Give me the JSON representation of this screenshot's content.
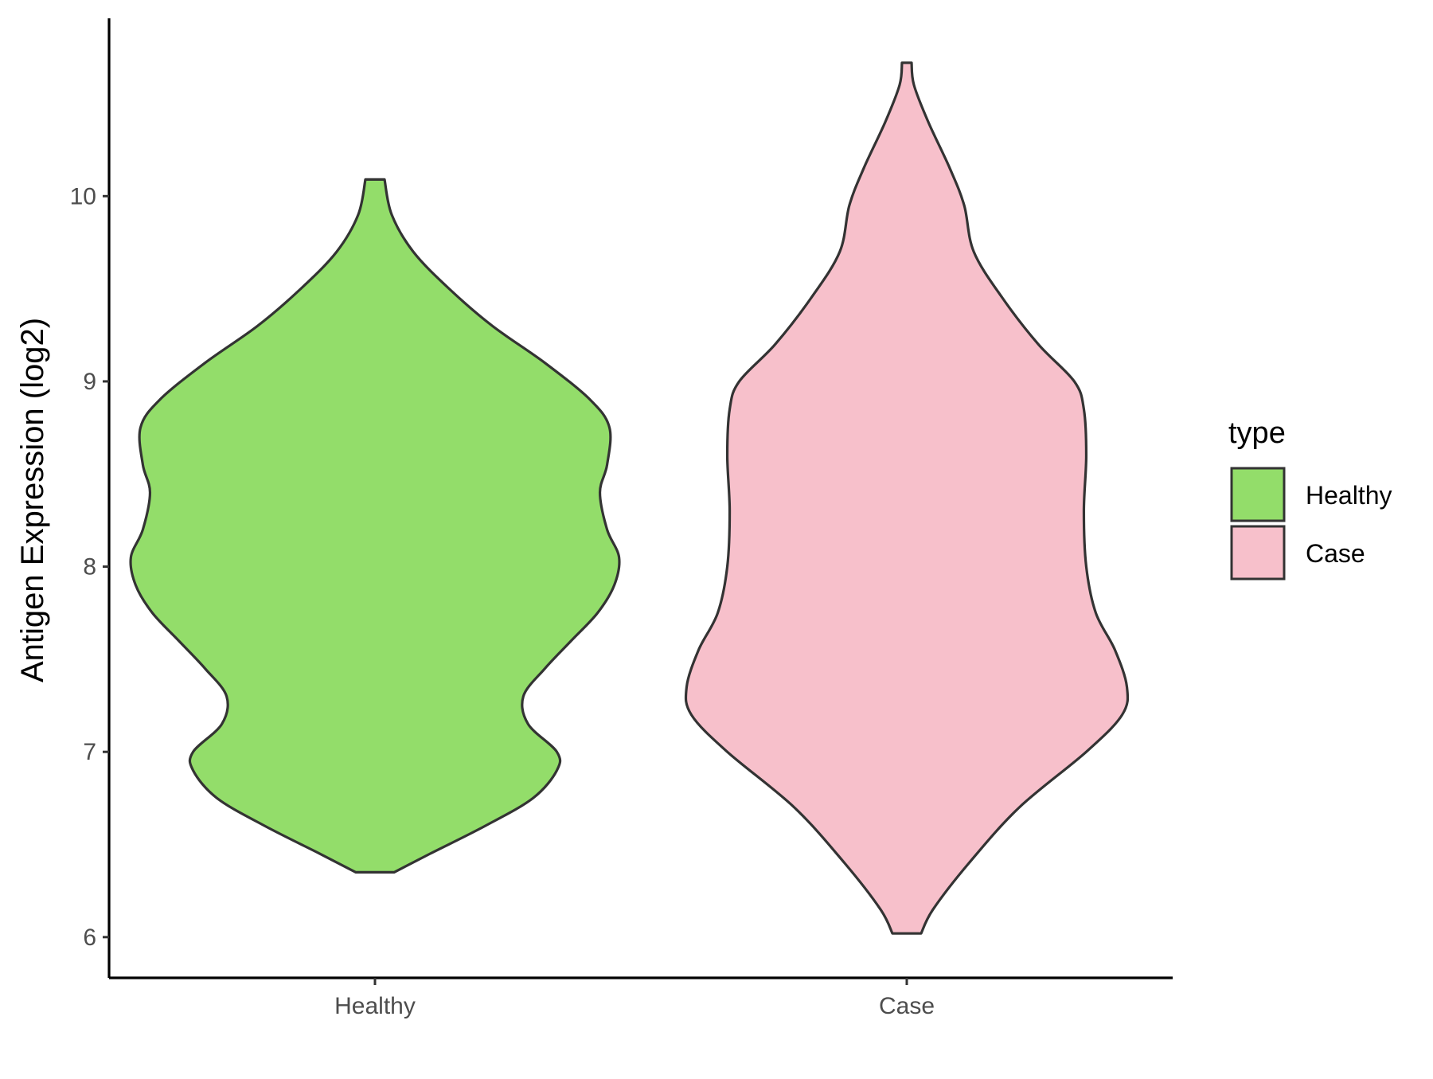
{
  "chart_data": {
    "type": "violin",
    "ylabel": "Antigen Expression (log2)",
    "xlabel": "",
    "categories": [
      "Healthy",
      "Case"
    ],
    "ylim": [
      5.78,
      10.96
    ],
    "yticks": [
      6,
      7,
      8,
      9,
      10
    ],
    "grid": false,
    "legend": {
      "title": "type",
      "position": "right",
      "entries": [
        {
          "label": "Healthy",
          "color": "#93DD6A"
        },
        {
          "label": "Case",
          "color": "#F7C0CB"
        }
      ]
    },
    "series": [
      {
        "name": "Healthy",
        "color": "#93DD6A",
        "min": 6.35,
        "max": 10.09,
        "profile": [
          [
            6.35,
            0.08
          ],
          [
            6.45,
            0.23
          ],
          [
            6.6,
            0.46
          ],
          [
            6.75,
            0.66
          ],
          [
            6.9,
            0.76
          ],
          [
            7.0,
            0.76
          ],
          [
            7.15,
            0.64
          ],
          [
            7.3,
            0.62
          ],
          [
            7.45,
            0.71
          ],
          [
            7.6,
            0.82
          ],
          [
            7.75,
            0.93
          ],
          [
            7.9,
            1.0
          ],
          [
            8.05,
            1.02
          ],
          [
            8.2,
            0.97
          ],
          [
            8.4,
            0.94
          ],
          [
            8.55,
            0.97
          ],
          [
            8.75,
            0.98
          ],
          [
            8.9,
            0.9
          ],
          [
            9.1,
            0.71
          ],
          [
            9.3,
            0.49
          ],
          [
            9.5,
            0.31
          ],
          [
            9.7,
            0.16
          ],
          [
            9.9,
            0.07
          ],
          [
            10.09,
            0.04
          ]
        ]
      },
      {
        "name": "Case",
        "color": "#F7C0CB",
        "min": 6.02,
        "max": 10.72,
        "profile": [
          [
            6.02,
            0.06
          ],
          [
            6.15,
            0.11
          ],
          [
            6.4,
            0.26
          ],
          [
            6.7,
            0.47
          ],
          [
            7.0,
            0.75
          ],
          [
            7.2,
            0.9
          ],
          [
            7.35,
            0.92
          ],
          [
            7.55,
            0.87
          ],
          [
            7.75,
            0.79
          ],
          [
            8.0,
            0.75
          ],
          [
            8.3,
            0.74
          ],
          [
            8.6,
            0.75
          ],
          [
            8.85,
            0.74
          ],
          [
            9.0,
            0.7
          ],
          [
            9.2,
            0.55
          ],
          [
            9.45,
            0.4
          ],
          [
            9.7,
            0.28
          ],
          [
            9.95,
            0.24
          ],
          [
            10.15,
            0.18
          ],
          [
            10.4,
            0.09
          ],
          [
            10.6,
            0.03
          ],
          [
            10.72,
            0.02
          ]
        ]
      }
    ]
  }
}
